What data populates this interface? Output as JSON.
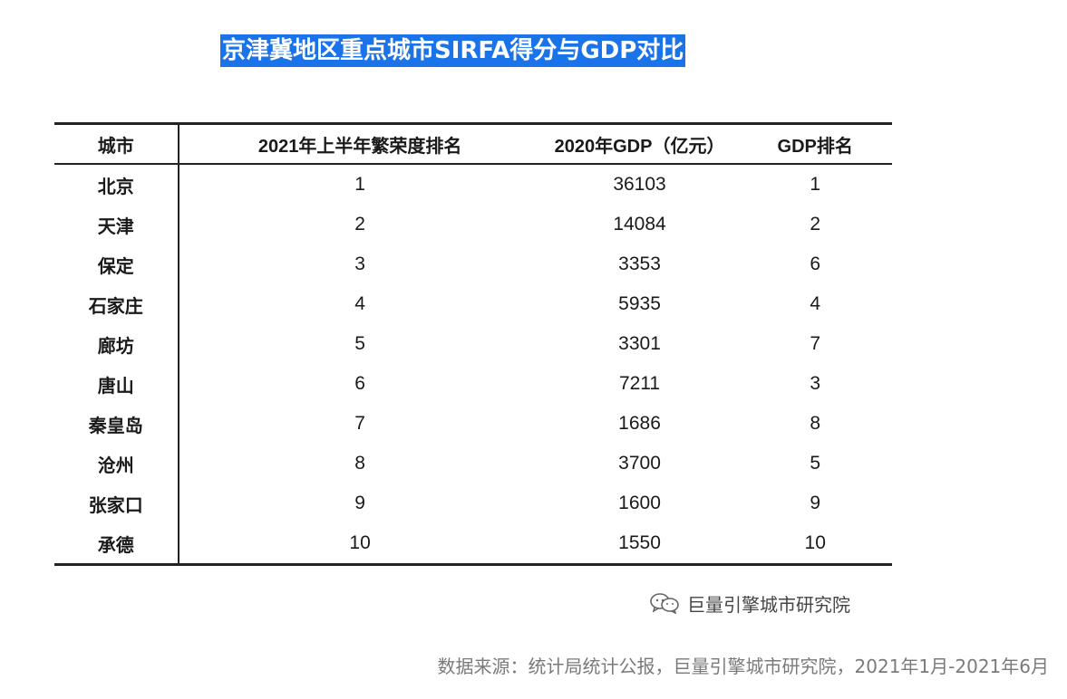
{
  "title": "京津冀地区重点城市SIRFA得分与GDP对比",
  "table": {
    "headers": {
      "city": "城市",
      "rank": "2021年上半年繁荣度排名",
      "gdp": "2020年GDP（亿元）",
      "gdp_rank": "GDP排名"
    },
    "rows": [
      {
        "city": "北京",
        "rank": "1",
        "gdp": "36103",
        "gdp_rank": "1"
      },
      {
        "city": "天津",
        "rank": "2",
        "gdp": "14084",
        "gdp_rank": "2"
      },
      {
        "city": "保定",
        "rank": "3",
        "gdp": "3353",
        "gdp_rank": "6"
      },
      {
        "city": "石家庄",
        "rank": "4",
        "gdp": "5935",
        "gdp_rank": "4"
      },
      {
        "city": "廊坊",
        "rank": "5",
        "gdp": "3301",
        "gdp_rank": "7"
      },
      {
        "city": "唐山",
        "rank": "6",
        "gdp": "7211",
        "gdp_rank": "3"
      },
      {
        "city": "秦皇岛",
        "rank": "7",
        "gdp": "1686",
        "gdp_rank": "8"
      },
      {
        "city": "沧州",
        "rank": "8",
        "gdp": "3700",
        "gdp_rank": "5"
      },
      {
        "city": "张家口",
        "rank": "9",
        "gdp": "1600",
        "gdp_rank": "9"
      },
      {
        "city": "承德",
        "rank": "10",
        "gdp": "1550",
        "gdp_rank": "10"
      }
    ]
  },
  "watermark": {
    "icon": "wechat-icon",
    "text": "巨量引擎城市研究院"
  },
  "source": "数据来源：统计局统计公报，巨量引擎城市研究院，2021年1月-2021年6月",
  "colors": {
    "title_bg": "#1a73e8",
    "title_text": "#ffffff",
    "source_text": "#7a7a7a"
  }
}
